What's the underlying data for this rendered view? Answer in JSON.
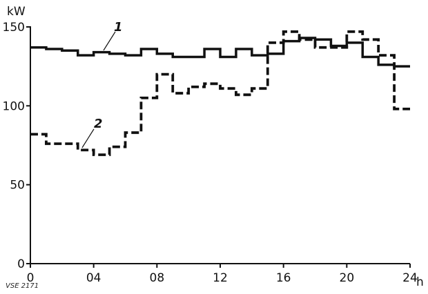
{
  "chart_data": {
    "type": "line",
    "step": true,
    "ylabel": "kW",
    "xunit": "h",
    "xlim": [
      0,
      24
    ],
    "ylim": [
      0,
      150
    ],
    "xticks": [
      {
        "value": 0,
        "label": "0"
      },
      {
        "value": 4,
        "label": "04"
      },
      {
        "value": 8,
        "label": "08"
      },
      {
        "value": 12,
        "label": "12"
      },
      {
        "value": 16,
        "label": "16"
      },
      {
        "value": 20,
        "label": "20"
      },
      {
        "value": 24,
        "label": "24"
      }
    ],
    "yticks": [
      {
        "value": 0,
        "label": "0"
      },
      {
        "value": 50,
        "label": "50"
      },
      {
        "value": 100,
        "label": "100"
      },
      {
        "value": 150,
        "label": "150"
      }
    ],
    "grid": false,
    "legend": "none",
    "series": [
      {
        "name": "1",
        "style": "solid",
        "x": [
          0,
          1,
          2,
          3,
          4,
          5,
          6,
          7,
          8,
          9,
          10,
          11,
          12,
          13,
          14,
          15,
          16,
          17,
          18,
          19,
          20,
          21,
          22,
          23
        ],
        "values": [
          137,
          136,
          135,
          132,
          134,
          133,
          132,
          136,
          133,
          131,
          131,
          136,
          131,
          136,
          132,
          133,
          141,
          143,
          142,
          138,
          140,
          131,
          126,
          125
        ]
      },
      {
        "name": "2",
        "style": "dashed",
        "x": [
          0,
          1,
          2,
          3,
          4,
          5,
          6,
          7,
          8,
          9,
          10,
          11,
          12,
          13,
          14,
          15,
          16,
          17,
          18,
          19,
          20,
          21,
          22,
          23
        ],
        "values": [
          82,
          76,
          76,
          72,
          69,
          74,
          83,
          105,
          120,
          108,
          112,
          114,
          111,
          107,
          111,
          140,
          147,
          142,
          137,
          137,
          147,
          142,
          132,
          98
        ]
      }
    ]
  },
  "labels": {
    "unit": "kW",
    "x_unit": "h",
    "series1_tag": "1",
    "series2_tag": "2",
    "credit": "VSE 2171"
  },
  "colors": {
    "ink": "#111111",
    "background": "#ffffff"
  }
}
